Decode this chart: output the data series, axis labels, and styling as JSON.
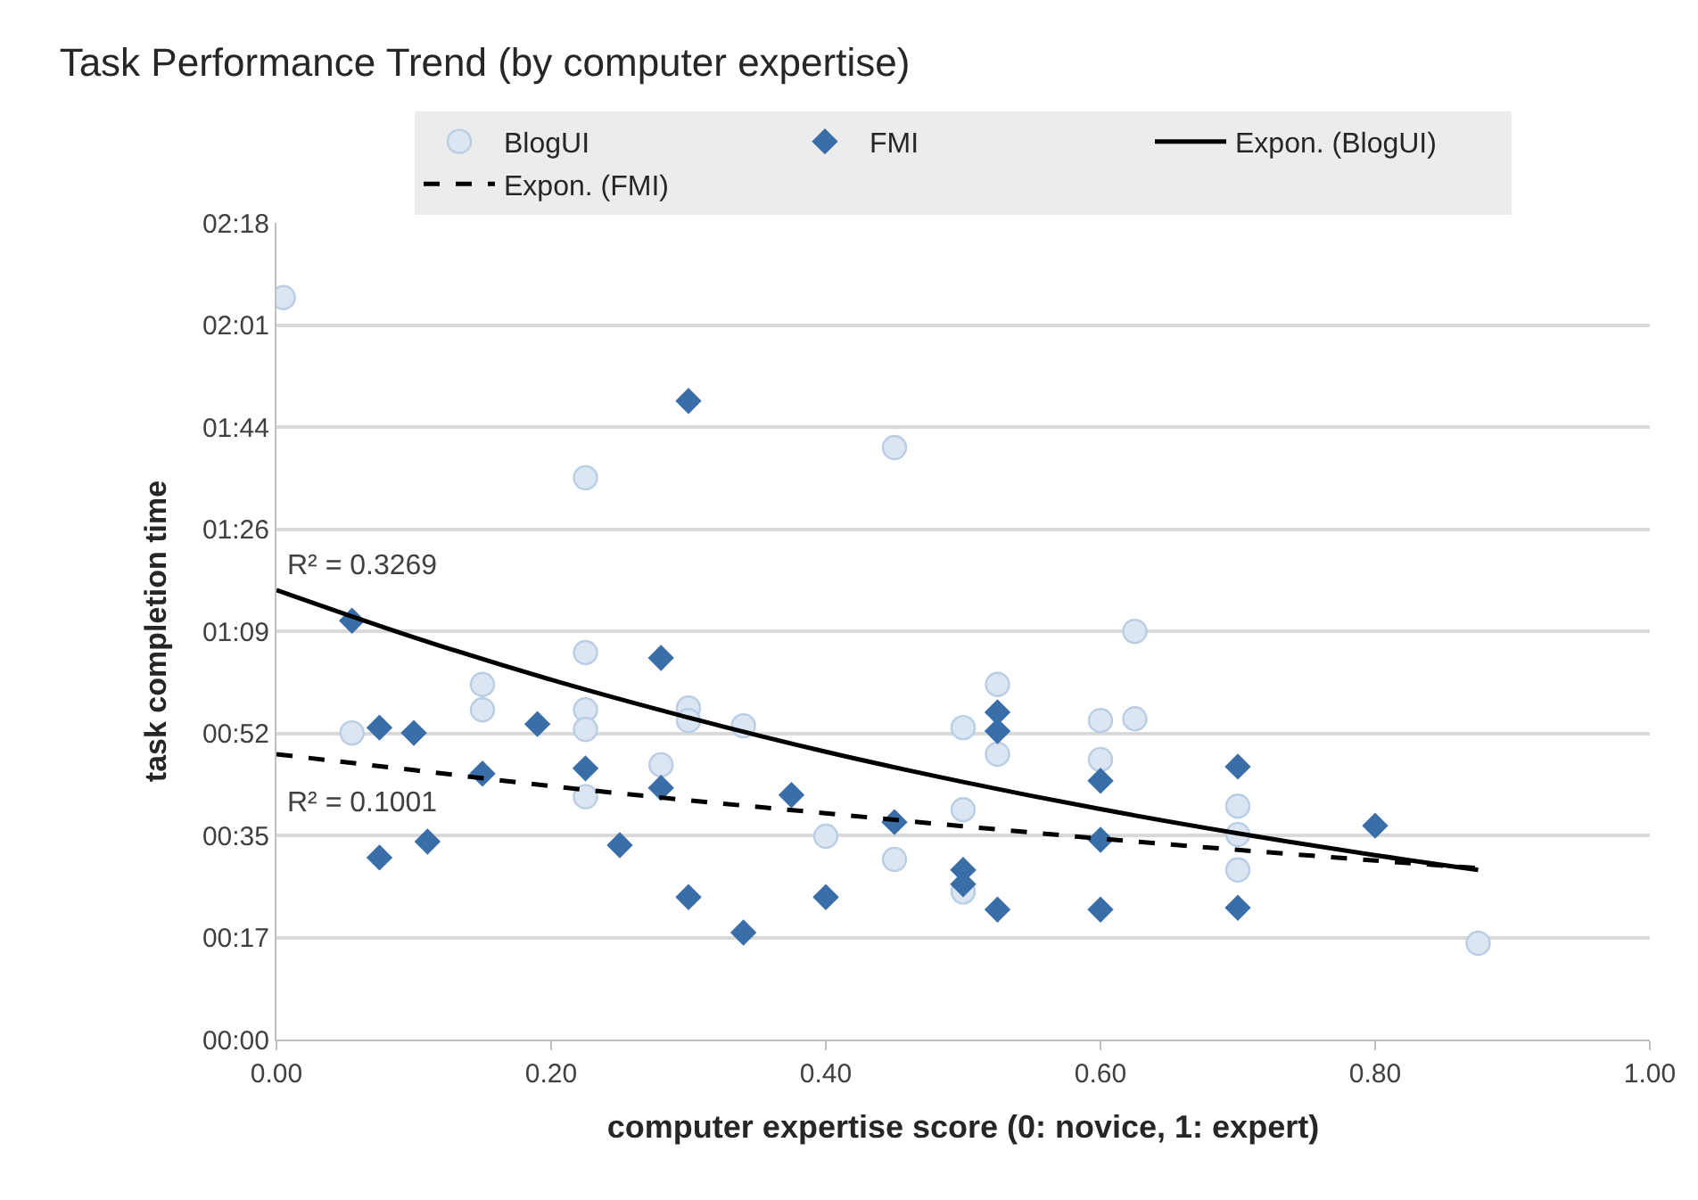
{
  "chart_data": {
    "type": "scatter",
    "title": "Task Performance Trend (by computer expertise)",
    "xlabel": "computer expertise score (0: novice, 1: expert)",
    "ylabel": "task completion time",
    "series": [
      {
        "name": "BlogUI",
        "marker": "circle",
        "color": "#dce6f2",
        "x": [
          0.005,
          0.055,
          0.15,
          0.15,
          0.225,
          0.225,
          0.225,
          0.225,
          0.225,
          0.28,
          0.3,
          0.3,
          0.34,
          0.4,
          0.45,
          0.45,
          0.5,
          0.5,
          0.5,
          0.525,
          0.525,
          0.6,
          0.6,
          0.625,
          0.625,
          0.7,
          0.7,
          0.7,
          0.875
        ],
        "values": [
          125.6,
          51.9,
          60.1,
          55.8,
          95.1,
          65.5,
          55.8,
          52.5,
          41.1,
          46.5,
          56.1,
          54.0,
          53.1,
          34.4,
          100.2,
          30.5,
          52.8,
          38.9,
          25.0,
          60.1,
          48.3,
          54.0,
          47.4,
          69.1,
          54.3,
          39.5,
          34.7,
          28.7,
          16.3
        ]
      },
      {
        "name": "FMI",
        "marker": "diamond",
        "color": "#3a6ea8",
        "x": [
          0.055,
          0.075,
          0.075,
          0.1,
          0.11,
          0.15,
          0.19,
          0.225,
          0.25,
          0.28,
          0.28,
          0.3,
          0.3,
          0.34,
          0.375,
          0.4,
          0.45,
          0.5,
          0.5,
          0.525,
          0.525,
          0.525,
          0.6,
          0.6,
          0.6,
          0.7,
          0.7,
          0.8
        ],
        "values": [
          70.9,
          52.8,
          30.8,
          51.9,
          33.5,
          45.0,
          53.4,
          45.9,
          32.9,
          64.6,
          42.6,
          108.1,
          24.1,
          18.1,
          41.4,
          24.1,
          36.8,
          28.7,
          26.3,
          55.4,
          52.2,
          22.0,
          43.8,
          33.8,
          22.0,
          46.2,
          22.3,
          36.2
        ]
      },
      {
        "name": "Expon. (BlogUI)",
        "type": "line",
        "marker": "none",
        "line_style": "solid",
        "color": "#000000",
        "x": [
          0,
          0.1,
          0.2,
          0.3,
          0.4,
          0.5,
          0.6,
          0.7,
          0.8,
          0.875
        ],
        "values": [
          76.1,
          68.1,
          60.9,
          54.5,
          48.7,
          43.6,
          39.0,
          34.9,
          31.2,
          28.7
        ]
      },
      {
        "name": "Expon. (FMI)",
        "type": "line",
        "marker": "none",
        "line_style": "dashed",
        "color": "#000000",
        "x": [
          0,
          0.1,
          0.2,
          0.3,
          0.4,
          0.5,
          0.6,
          0.7,
          0.8,
          0.875
        ],
        "values": [
          48.3,
          45.6,
          42.9,
          40.5,
          38.3,
          36.1,
          34.0,
          32.1,
          30.3,
          29.0
        ]
      }
    ],
    "annotations": [
      "R² = 0.3269",
      "R² = 0.1001"
    ],
    "xlim": [
      0,
      1
    ],
    "xticks": [
      {
        "value": 0,
        "label": "0.00"
      },
      {
        "value": 0.2,
        "label": "0.20"
      },
      {
        "value": 0.4,
        "label": "0.40"
      },
      {
        "value": 0.6,
        "label": "0.60"
      },
      {
        "value": 0.8,
        "label": "0.80"
      },
      {
        "value": 1,
        "label": "1.00"
      }
    ],
    "ylim": [
      0,
      138.24
    ],
    "yticks": [
      {
        "value": 0,
        "label": "00:00"
      },
      {
        "value": 17.28,
        "label": "00:17"
      },
      {
        "value": 34.56,
        "label": "00:35"
      },
      {
        "value": 51.84,
        "label": "00:52"
      },
      {
        "value": 69.12,
        "label": "01:09"
      },
      {
        "value": 86.4,
        "label": "01:26"
      },
      {
        "value": 103.68,
        "label": "01:44"
      },
      {
        "value": 120.96,
        "label": "02:01"
      },
      {
        "value": 138.24,
        "label": "02:18"
      }
    ],
    "grid": "y",
    "legend": "top"
  }
}
